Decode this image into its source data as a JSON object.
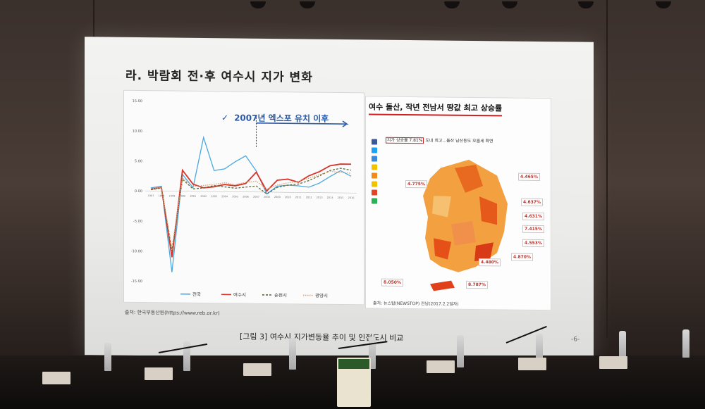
{
  "slide": {
    "title": "라. 박람회 전·후 여수시 지가 변화",
    "annotation": "2007년 엑스포 유치 이후",
    "source_left": "출처: 한국부동산원(https://www.reb.or.kr)",
    "figure_caption": "[그림 3] 여수시 지가변동율 추이 및 인접도시 비교",
    "page_number": "-6-"
  },
  "news": {
    "headline": "여수 돌산, 작년 전남서 땅값 최고 상승률",
    "caption_highlight": "지가 상승률 7.81%",
    "caption_rest": "도내 최고...돌산 남산동도 오름세 확연",
    "credit": "출처: 뉴스탑(NEWSTOP) 전남(2017.2.2일자)",
    "map_labels": [
      "4.775%",
      "4.465%",
      "4.637%",
      "4.631%",
      "7.415%",
      "4.553%",
      "4.870%",
      "4.480%",
      "8.050%",
      "8.787%"
    ]
  },
  "chart_data": {
    "type": "line",
    "ylim": [
      -15,
      15
    ],
    "yticks": [
      "15.00",
      "10.00",
      "5.00",
      "0.00",
      "-5.00",
      "-10.00",
      "-15.00"
    ],
    "x": [
      1997,
      1998,
      1999,
      2000,
      2001,
      2002,
      2003,
      2004,
      2005,
      2006,
      2007,
      2008,
      2009,
      2010,
      2011,
      2012,
      2013,
      2014,
      2015,
      2016
    ],
    "series": [
      {
        "name": "전국",
        "color": "#4aa8e0",
        "values": [
          0.5,
          0.8,
          -13.5,
          2.8,
          0.6,
          9,
          3.5,
          3.8,
          5,
          6,
          3.5,
          -0.3,
          1,
          1.2,
          1.1,
          0.9,
          1.6,
          2.7,
          3.7,
          2.8
        ]
      },
      {
        "name": "여수시",
        "color": "#d9342b",
        "values": [
          0.3,
          0.6,
          -11,
          3.5,
          1.2,
          0.6,
          0.8,
          1.2,
          1,
          1.4,
          3.3,
          0.2,
          2,
          2.2,
          1.7,
          2.8,
          3.5,
          4.5,
          4.8,
          4.8
        ]
      },
      {
        "name": "순천시",
        "color": "#5a6a3a",
        "values": [
          0.2,
          0.5,
          -10,
          2,
          0.4,
          0.6,
          1,
          0.8,
          0.6,
          0.8,
          1,
          -0.3,
          0.8,
          1.2,
          1.4,
          2,
          2.8,
          3.7,
          4.1,
          3.8
        ]
      },
      {
        "name": "광양시",
        "color": "#e2a070",
        "values": [
          0.4,
          0.6,
          -9.5,
          2.2,
          0.8,
          1,
          1.2,
          1.5,
          1.2,
          1.6,
          1.8,
          0.5,
          1.2,
          1.6,
          1.8,
          2.4,
          3,
          3.6,
          3.4,
          3.3
        ]
      }
    ]
  },
  "colors": {
    "accent_blue": "#2b5aa7",
    "accent_red": "#d02020"
  }
}
